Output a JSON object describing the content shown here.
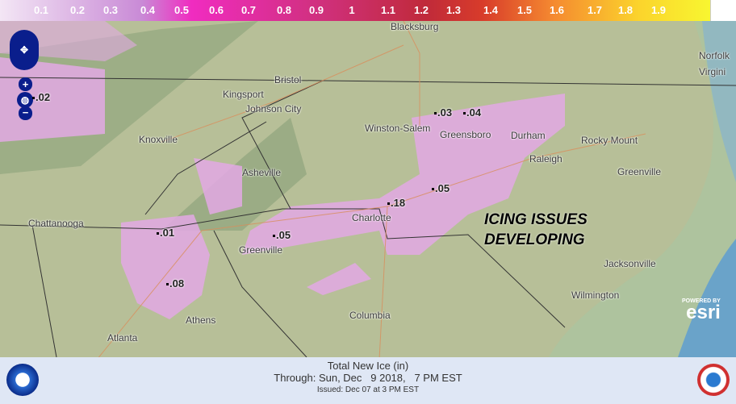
{
  "legend": {
    "ticks": [
      "0.1",
      "0.2",
      "0.3",
      "0.4",
      "0.5",
      "0.6",
      "0.7",
      "0.8",
      "0.9",
      "1",
      "1.1",
      "1.2",
      "1.3",
      "1.4",
      "1.5",
      "1.6",
      "1.7",
      "1.8",
      "1.9"
    ]
  },
  "map": {
    "cities": [
      "Blacksburg",
      "Bristol",
      "Kingsport",
      "Johnson City",
      "Knoxville",
      "Asheville",
      "Winston-Salem",
      "Greensboro",
      "Durham",
      "Raleigh",
      "Rocky Mount",
      "Greenville",
      "Charlotte",
      "Chattanooga",
      "Greenville",
      "Athens",
      "Atlanta",
      "Columbia",
      "Wilmington",
      "Jacksonville",
      "Norfolk",
      "Virgini"
    ],
    "values": [
      ".02",
      ".03",
      ".04",
      ".05",
      ".18",
      ".05",
      ".01",
      ".08"
    ],
    "overlay_line1": "ICING ISSUES",
    "overlay_line2": "DEVELOPING",
    "esri_powered": "POWERED BY",
    "esri": "esri"
  },
  "footer": {
    "title": "Total New Ice (in)",
    "through": "Through: Sun, Dec   9 2018,   7 PM EST",
    "issued": "Issued: Dec 07 at 3 PM EST"
  }
}
